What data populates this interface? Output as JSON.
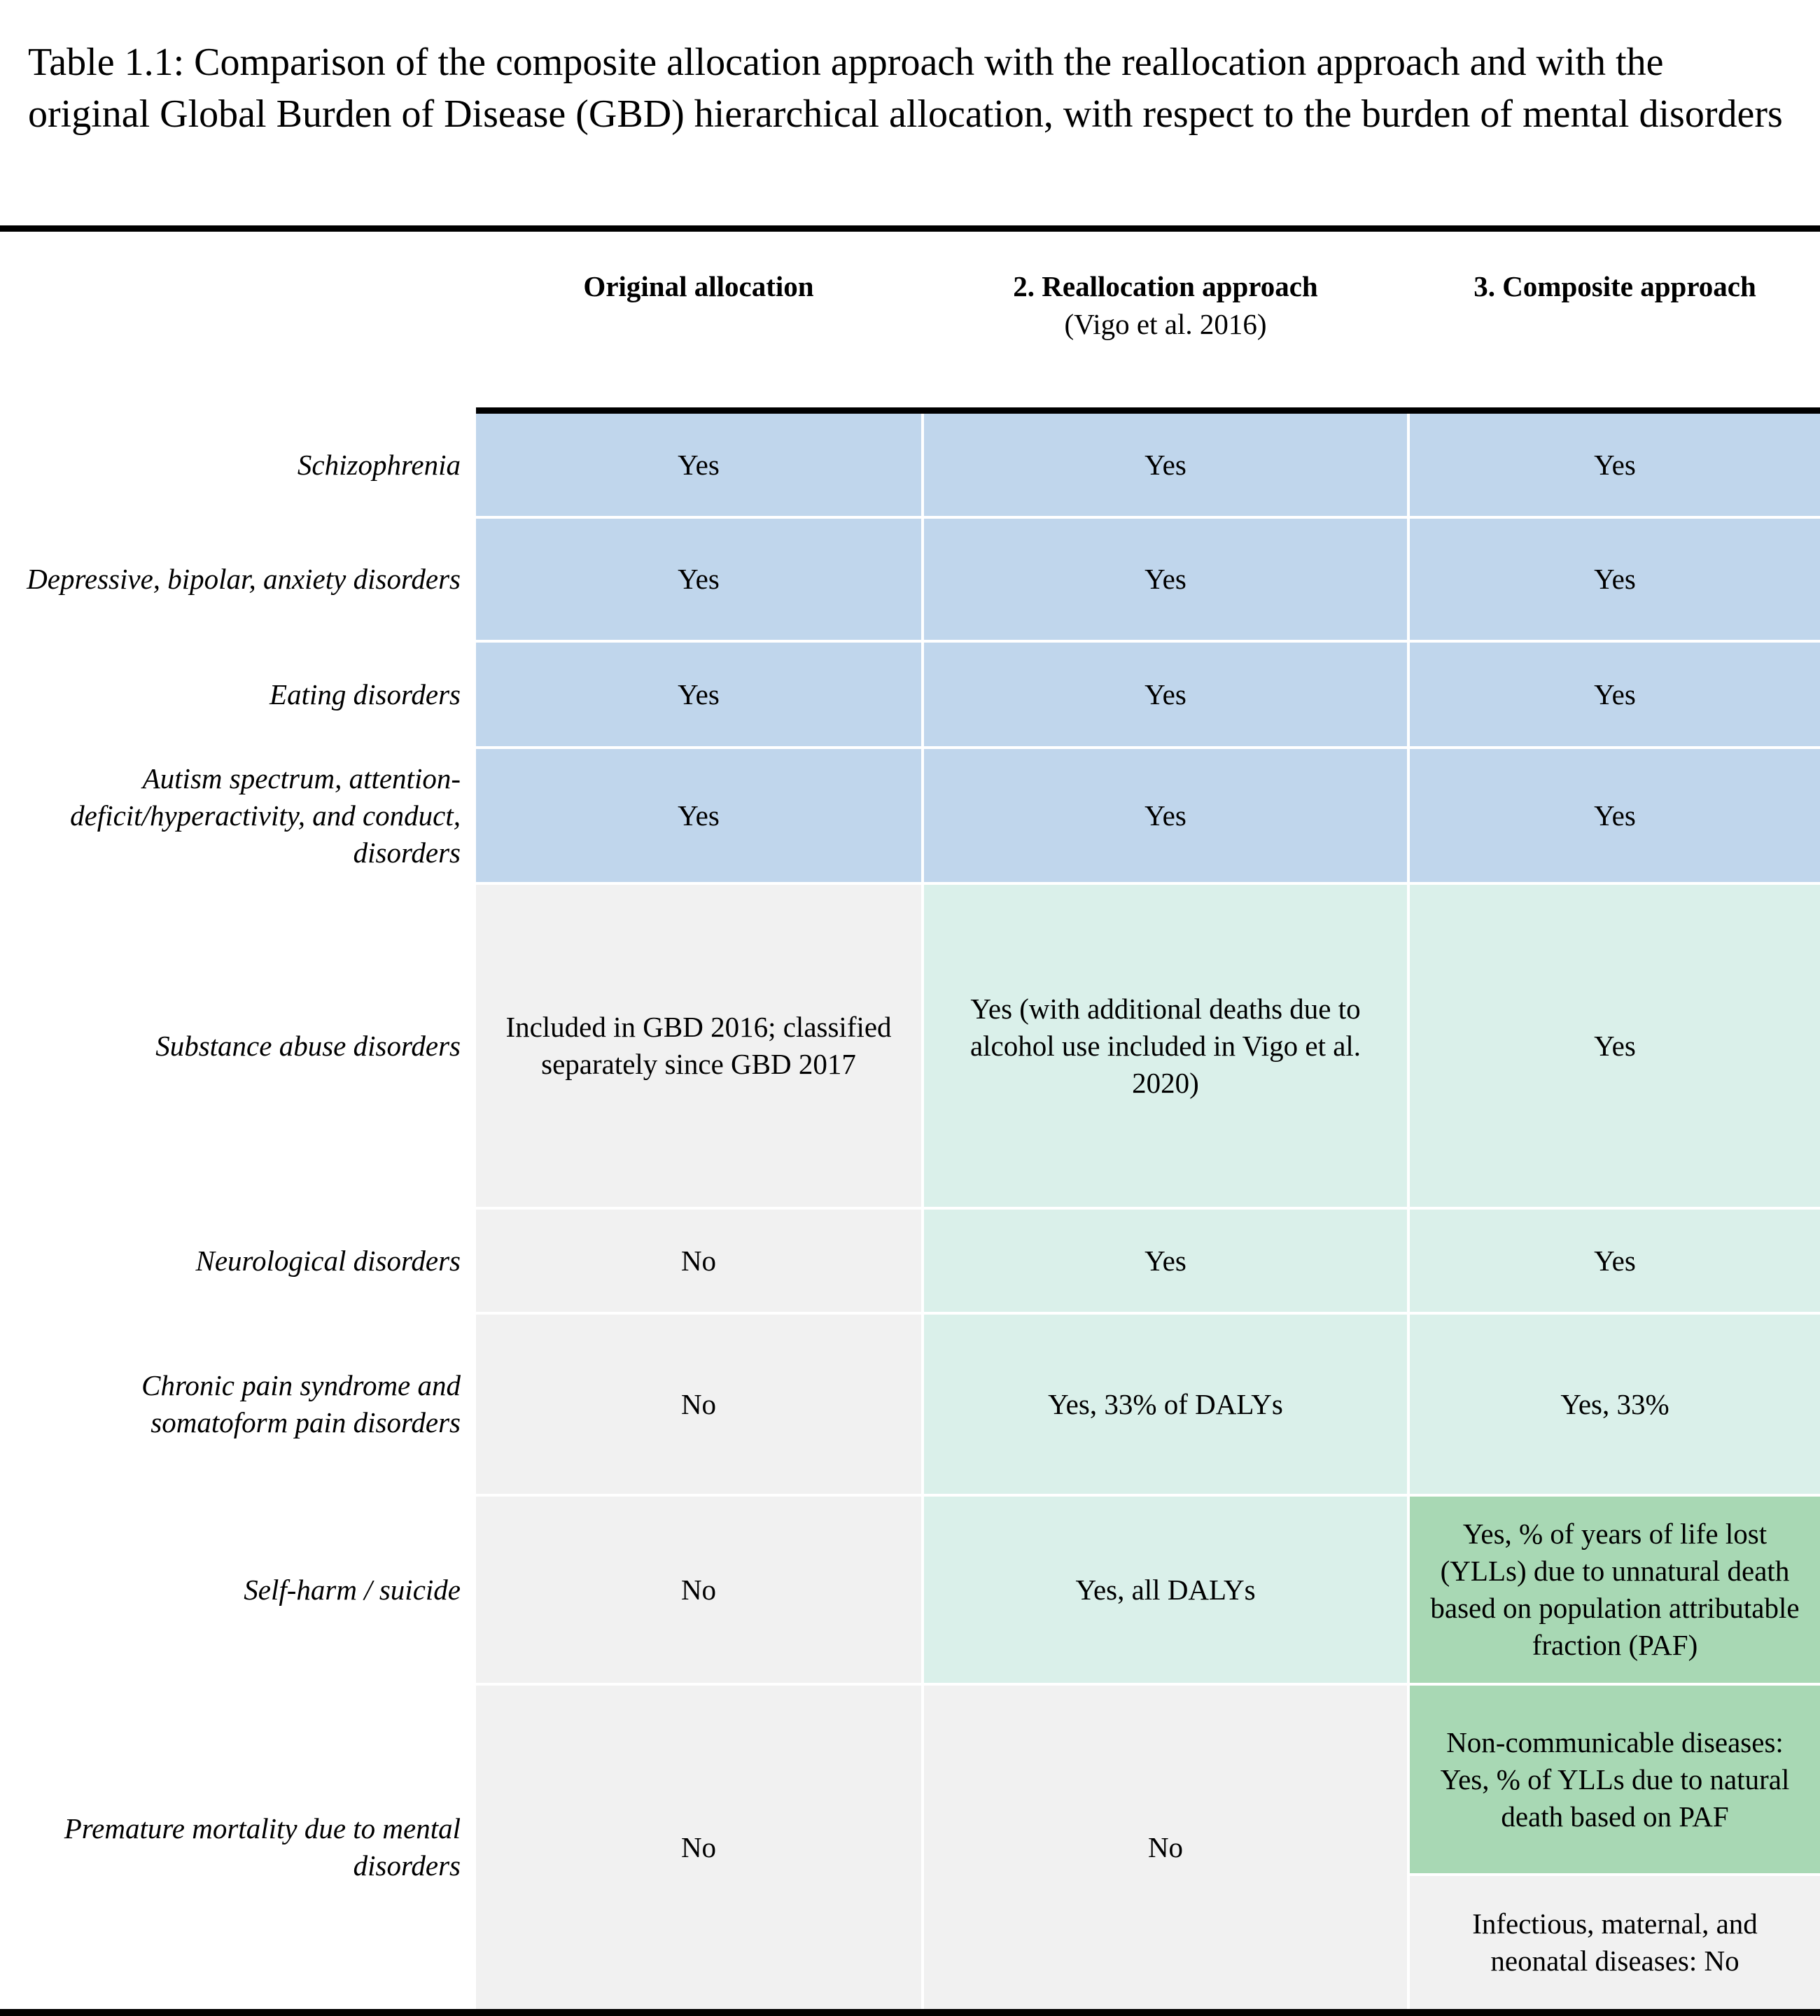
{
  "caption": "Table 1.1: Comparison of the composite allocation approach with the reallocation approach and with the original Global Burden of Disease (GBD) hierarchical allocation, with respect to the burden of mental disorders",
  "columns": {
    "original": {
      "title": "Original allocation"
    },
    "reallocation": {
      "title": "2. Reallocation approach",
      "subtitle": "(Vigo et al. 2016)"
    },
    "composite": {
      "title": "3. Composite approach"
    }
  },
  "rows": [
    {
      "label": "Schizophrenia",
      "original": "Yes",
      "reallocation": "Yes",
      "composite": "Yes"
    },
    {
      "label": "Depressive, bipolar, anxiety disorders",
      "original": "Yes",
      "reallocation": "Yes",
      "composite": "Yes"
    },
    {
      "label": "Eating disorders",
      "original": "Yes",
      "reallocation": "Yes",
      "composite": "Yes"
    },
    {
      "label": "Autism spectrum, attention-deficit/hyperactivity, and conduct, disorders",
      "original": "Yes",
      "reallocation": "Yes",
      "composite": "Yes"
    },
    {
      "label": "Substance abuse disorders",
      "original": "Included in GBD 2016; classified separately since GBD 2017",
      "reallocation": "Yes (with additional deaths due to alcohol use included in Vigo et al. 2020)",
      "composite": "Yes"
    },
    {
      "label": "Neurological disorders",
      "original": "No",
      "reallocation": "Yes",
      "composite": "Yes"
    },
    {
      "label": "Chronic pain syndrome and somatoform pain disorders",
      "original": "No",
      "reallocation": "Yes, 33% of DALYs",
      "composite": "Yes, 33%"
    },
    {
      "label": "Self-harm / suicide",
      "original": "No",
      "reallocation": "Yes, all DALYs",
      "composite": "Yes, % of years of life lost (YLLs) due to unnatural death based on population attributable fraction (PAF)"
    },
    {
      "label": "Premature mortality due to mental disorders",
      "original": "No",
      "reallocation": "No",
      "composite": "Non-communicable diseases: Yes, % of YLLs due to natural death based on PAF",
      "composite_extra": "Infectious, maternal, and neonatal diseases: No"
    }
  ],
  "colors": {
    "blue": "#c0d6ec",
    "mint": "#daf0ea",
    "grey": "#f1f1f1",
    "green": "#a8d8b4"
  }
}
